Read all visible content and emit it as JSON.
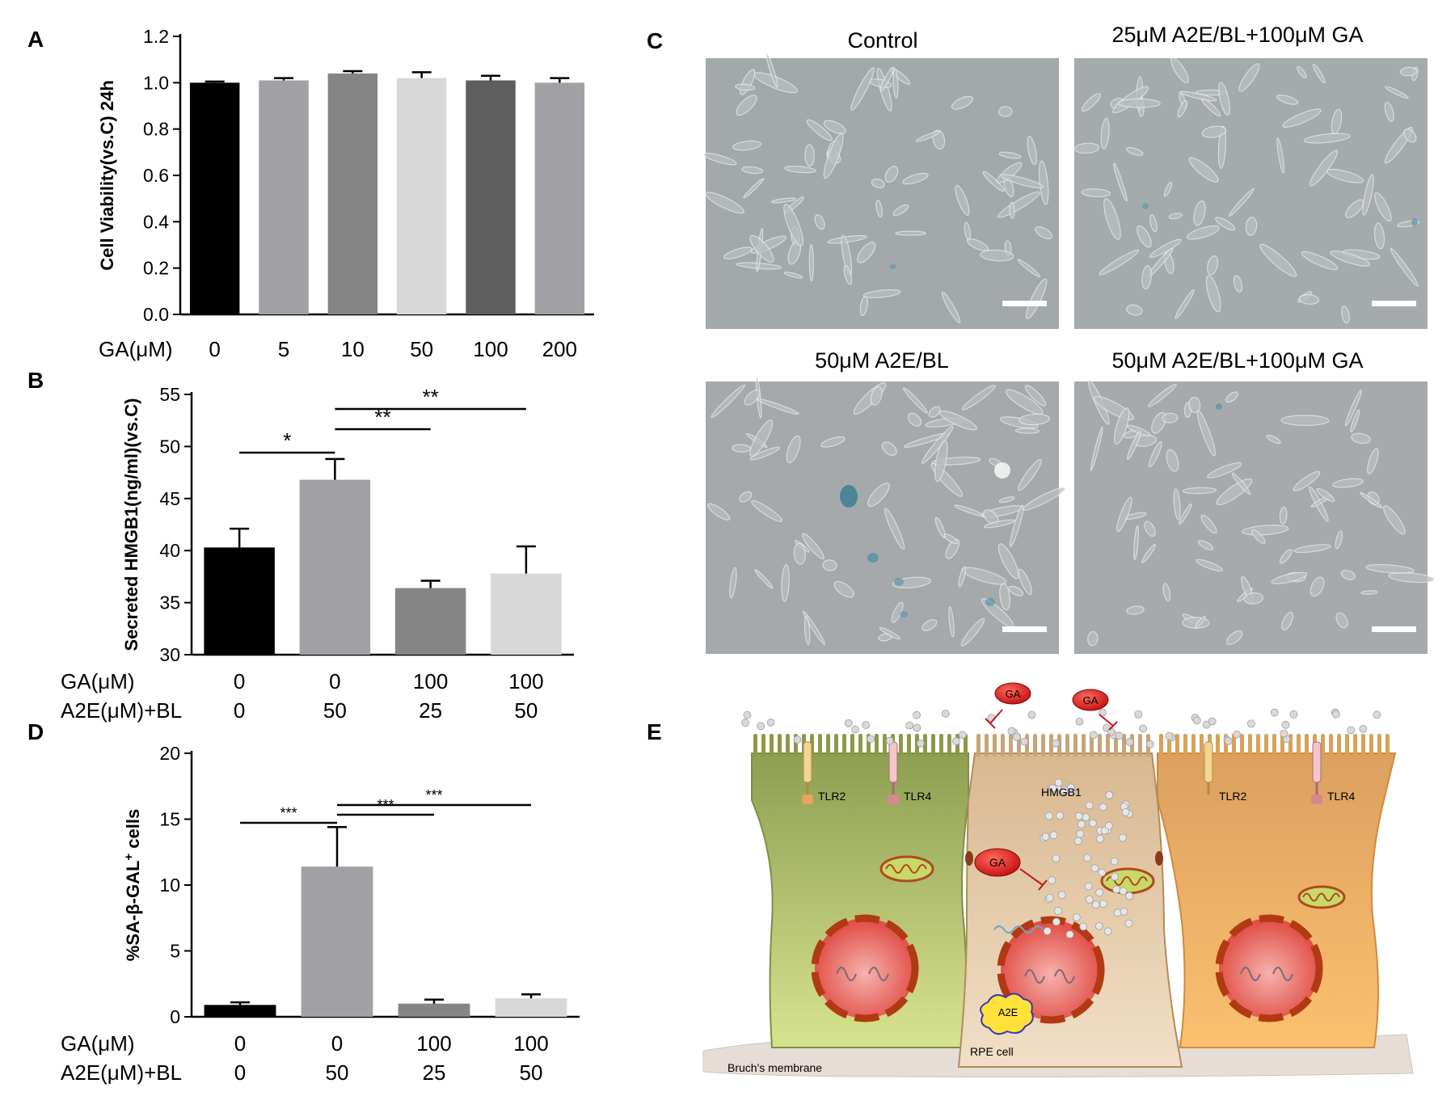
{
  "panels": {
    "A": "A",
    "B": "B",
    "C": "C",
    "D": "D",
    "E": "E"
  },
  "chart_data": [
    {
      "panel": "A",
      "type": "bar",
      "ylabel": "Cell Viability(vs.C) 24h",
      "xlabel": "GA(μM)",
      "categories": [
        "0",
        "5",
        "10",
        "50",
        "100",
        "200"
      ],
      "values": [
        1.0,
        1.01,
        1.04,
        1.02,
        1.01,
        1.0
      ],
      "errors": [
        0.005,
        0.01,
        0.01,
        0.025,
        0.02,
        0.02
      ],
      "ylim": [
        0.0,
        1.2
      ],
      "yticks": [
        0.0,
        0.2,
        0.4,
        0.6,
        0.8,
        1.0,
        1.2
      ],
      "ytick_labels": [
        "0.0",
        "0.2",
        "0.4",
        "0.6",
        "0.8",
        "1.0",
        "1.2"
      ],
      "colors": [
        "#000000",
        "#a1a1a5",
        "#858586",
        "#d8d8d8",
        "#5e5e5e",
        "#a1a1a5"
      ],
      "grid": false
    },
    {
      "panel": "B",
      "type": "bar",
      "ylabel": "Secreted HMGB1(ng/ml)(vs.C)",
      "row_labels": [
        "GA(μM)",
        "A2E(μM)+BL"
      ],
      "rows": [
        [
          "0",
          "0",
          "100",
          "100"
        ],
        [
          "0",
          "50",
          "25",
          "50"
        ]
      ],
      "values": [
        40.3,
        46.8,
        36.4,
        37.8
      ],
      "errors": [
        1.8,
        2.0,
        0.7,
        2.6
      ],
      "ylim": [
        30,
        55
      ],
      "yticks": [
        30,
        35,
        40,
        45,
        50,
        55
      ],
      "colors": [
        "#000000",
        "#a1a1a5",
        "#858586",
        "#d8d8d8"
      ],
      "significance": [
        {
          "from": 0,
          "to": 1,
          "label": "*"
        },
        {
          "from": 1,
          "to": 2,
          "label": "**"
        },
        {
          "from": 1,
          "to": 3,
          "label": "**"
        }
      ],
      "grid": false
    },
    {
      "panel": "D",
      "type": "bar",
      "ylabel": "%SA-β-GAL",
      "ylabel_sup": "+",
      "ylabel_suffix": " cells",
      "row_labels": [
        "GA(μM)",
        "A2E(μM)+BL"
      ],
      "rows": [
        [
          "0",
          "0",
          "100",
          "100"
        ],
        [
          "0",
          "50",
          "25",
          "50"
        ]
      ],
      "values": [
        0.9,
        11.4,
        1.0,
        1.4
      ],
      "errors": [
        0.2,
        3.0,
        0.3,
        0.3
      ],
      "ylim": [
        0,
        20
      ],
      "yticks": [
        0,
        5,
        10,
        15,
        20
      ],
      "colors": [
        "#000000",
        "#a1a1a5",
        "#858586",
        "#d8d8d8"
      ],
      "significance": [
        {
          "from": 0,
          "to": 1,
          "label": "***"
        },
        {
          "from": 1,
          "to": 2,
          "label": "***"
        },
        {
          "from": 1,
          "to": 3,
          "label": "***"
        }
      ],
      "grid": false
    }
  ],
  "micrographs": {
    "titles": [
      "Control",
      "25μM A2E/BL+100μM GA",
      "50μM A2E/BL",
      "50μM A2E/BL+100μM GA"
    ]
  },
  "diagram": {
    "tlr2": "TLR2",
    "tlr4": "TLR4",
    "ga": "GA",
    "hmgb1": "HMGB1",
    "a2e": "A2E",
    "rpe_cell": "RPE cell",
    "bruch": "Bruch's membrane",
    "colors": {
      "left_cell": "#b9cd78",
      "mid_cell": "#e2c7a3",
      "right_cell": "#f0b466",
      "nucleus_red": "#e0453e",
      "ga_red": "#d61c1c"
    }
  }
}
